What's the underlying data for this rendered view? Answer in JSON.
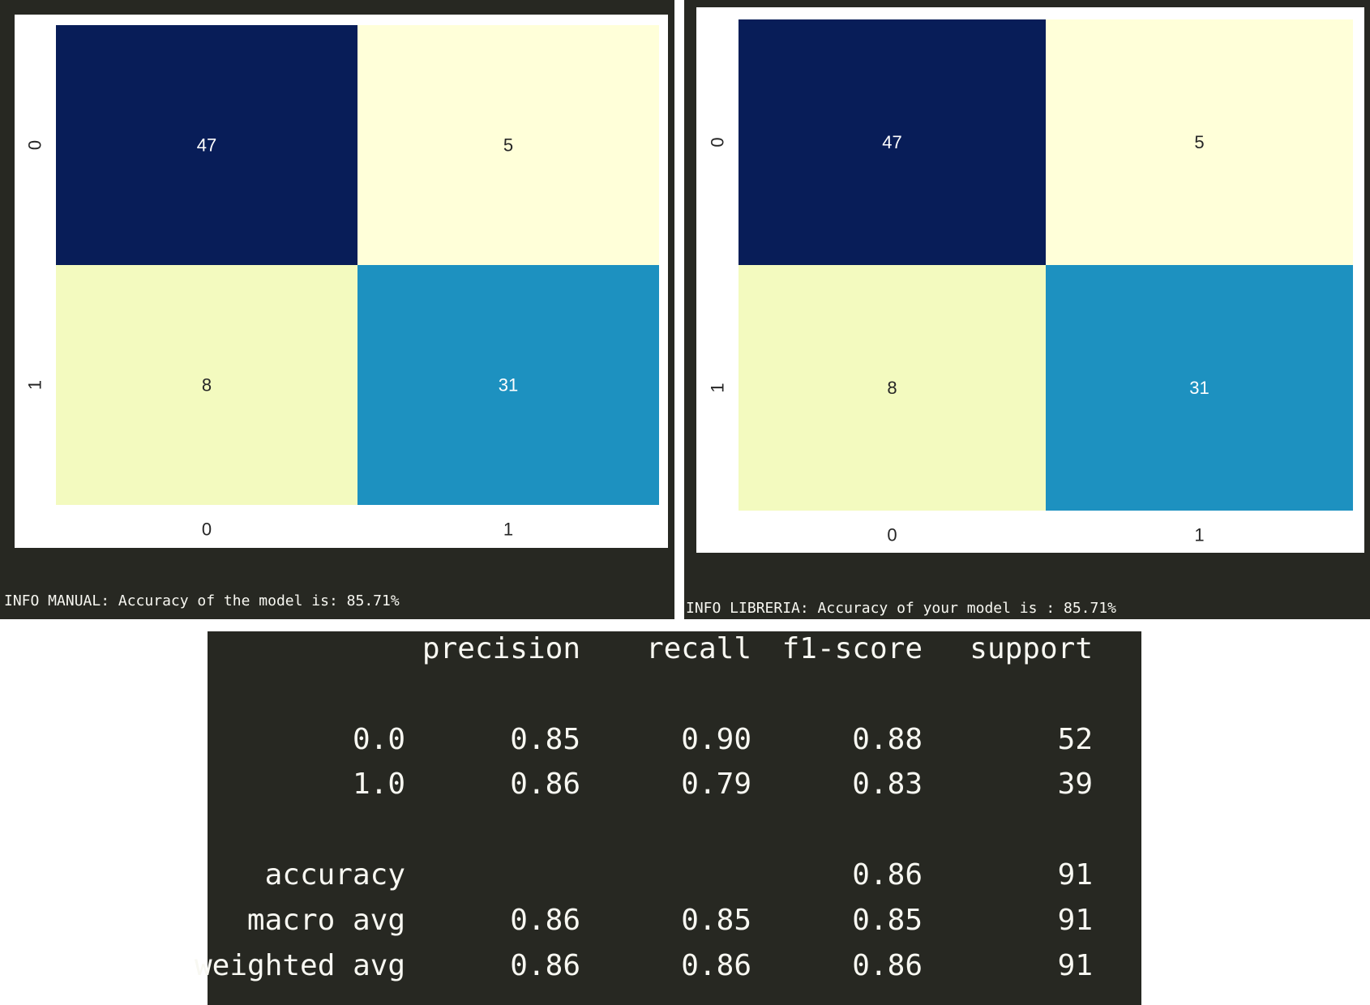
{
  "chart_data": [
    {
      "type": "heatmap",
      "x_ticks": [
        "0",
        "1"
      ],
      "y_ticks": [
        "0",
        "1"
      ],
      "values": [
        [
          47,
          5
        ],
        [
          8,
          31
        ]
      ],
      "colormap": "YlGnBu",
      "cell_colors": [
        [
          "#081d58",
          "#ffffd9"
        ],
        [
          "#f3fabf",
          "#1d91c0"
        ]
      ],
      "text_colors": [
        [
          "#ffffff",
          "#262626"
        ],
        [
          "#262626",
          "#ffffff"
        ]
      ]
    },
    {
      "type": "heatmap",
      "x_ticks": [
        "0",
        "1"
      ],
      "y_ticks": [
        "0",
        "1"
      ],
      "values": [
        [
          47,
          5
        ],
        [
          8,
          31
        ]
      ],
      "colormap": "YlGnBu",
      "cell_colors": [
        [
          "#081d58",
          "#ffffd9"
        ],
        [
          "#f3fabf",
          "#1d91c0"
        ]
      ],
      "text_colors": [
        [
          "#ffffff",
          "#262626"
        ],
        [
          "#262626",
          "#ffffff"
        ]
      ]
    },
    {
      "type": "table",
      "columns": [
        "precision",
        "recall",
        "f1-score",
        "support"
      ],
      "rows": [
        {
          "label": "0.0",
          "values": [
            "0.85",
            "0.90",
            "0.88",
            "52"
          ]
        },
        {
          "label": "1.0",
          "values": [
            "0.86",
            "0.79",
            "0.83",
            "39"
          ]
        },
        {
          "label": "accuracy",
          "values": [
            "",
            "",
            "0.86",
            "91"
          ]
        },
        {
          "label": "macro avg",
          "values": [
            "0.86",
            "0.85",
            "0.85",
            "91"
          ]
        },
        {
          "label": "weighted avg",
          "values": [
            "0.86",
            "0.86",
            "0.86",
            "91"
          ]
        }
      ]
    }
  ],
  "logs": {
    "manual": "INFO MANUAL: Accuracy of the model is: 85.71%",
    "libreria": "INFO LIBRERIA: Accuracy of your model is : 85.71%"
  },
  "colors": {
    "terminal_bg": "#272822",
    "terminal_text": "#f8f8f2",
    "figure_bg": "#ffffff",
    "tick_text": "#262626"
  }
}
